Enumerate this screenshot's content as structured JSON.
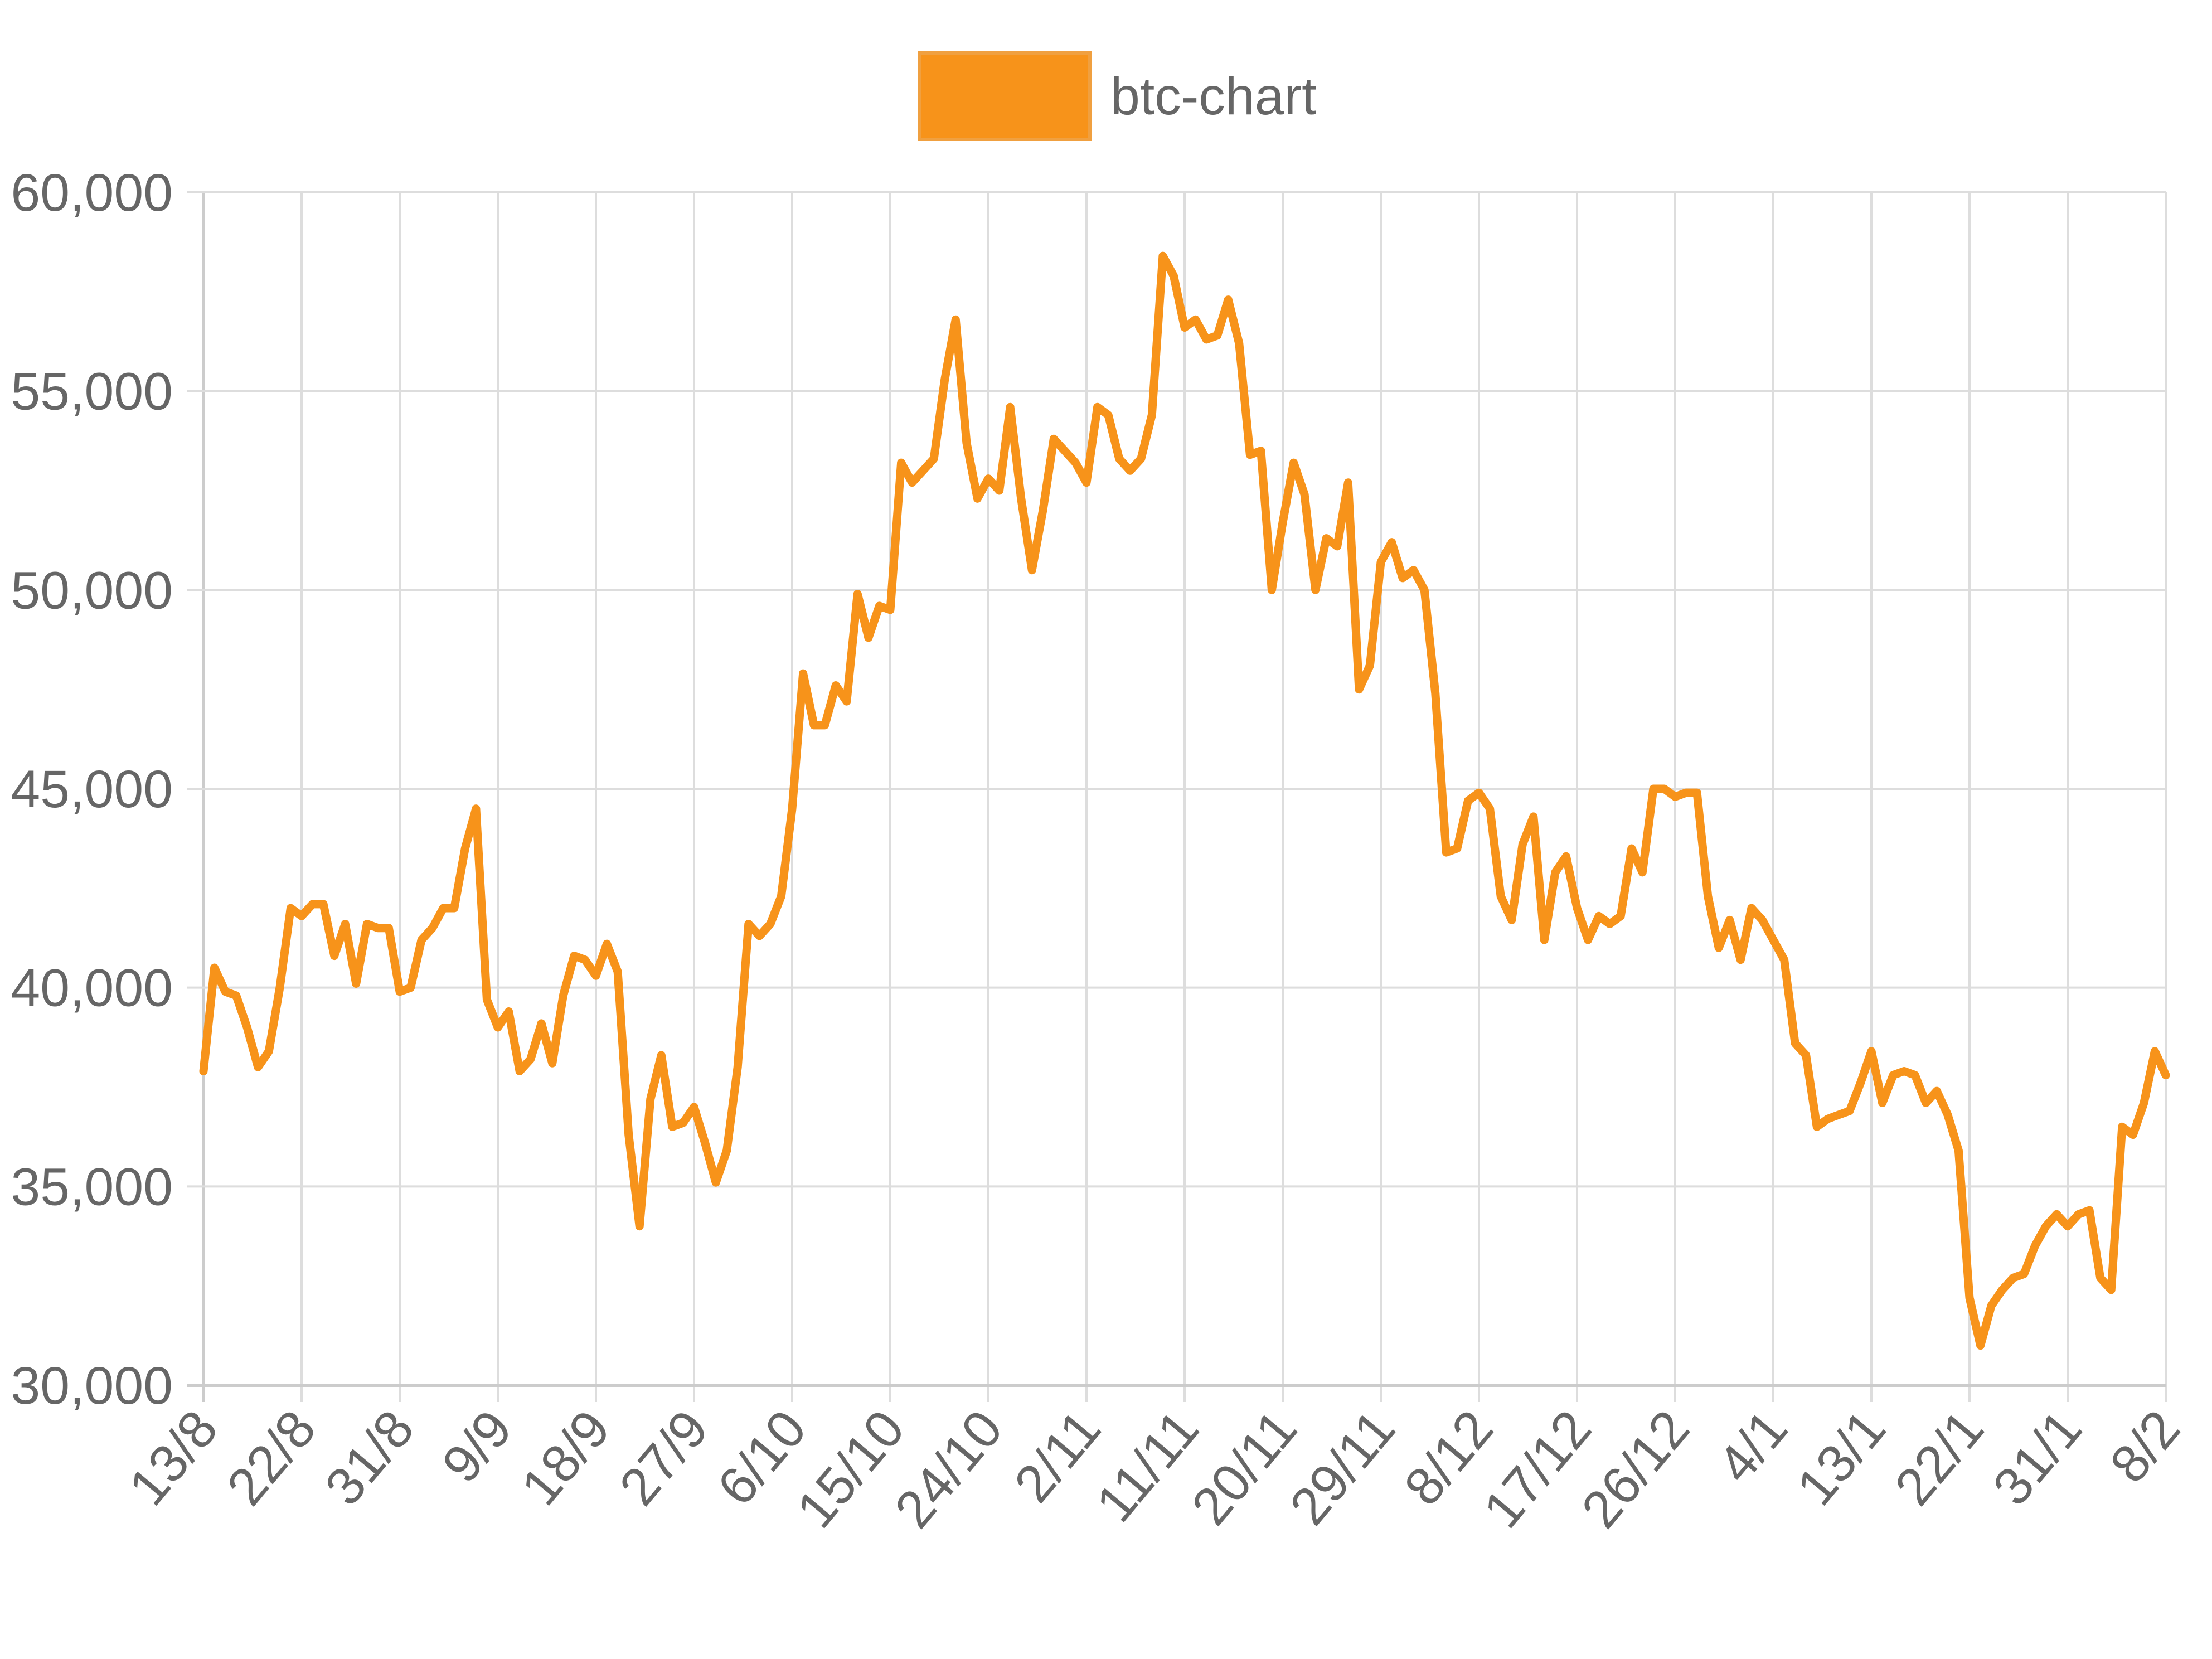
{
  "chart_data": {
    "type": "line",
    "legend": {
      "label": "btc-chart",
      "position": "top-center"
    },
    "series": [
      {
        "name": "btc-chart",
        "color": "#f7931a",
        "values": [
          37900,
          40500,
          39900,
          39800,
          39000,
          38000,
          38400,
          40000,
          42000,
          41800,
          42100,
          42100,
          40800,
          41600,
          40100,
          41600,
          41500,
          41500,
          39900,
          40000,
          41200,
          41500,
          42000,
          42000,
          43500,
          44500,
          39700,
          39000,
          39400,
          37900,
          38200,
          39100,
          38100,
          39800,
          40800,
          40700,
          40300,
          41100,
          40400,
          36300,
          34000,
          37200,
          38300,
          36500,
          36600,
          37000,
          36100,
          35100,
          35900,
          38000,
          41600,
          41300,
          41600,
          42300,
          44500,
          47900,
          46600,
          46600,
          47600,
          47200,
          49900,
          48800,
          49600,
          49500,
          53200,
          52700,
          53000,
          53300,
          55300,
          56800,
          53700,
          52300,
          52800,
          52500,
          54600,
          52300,
          50500,
          52000,
          53800,
          53500,
          53200,
          52700,
          54600,
          54400,
          53300,
          53000,
          53300,
          54400,
          58400,
          57900,
          56600,
          56800,
          56300,
          56400,
          57300,
          56200,
          53400,
          53500,
          50000,
          51700,
          53200,
          52400,
          50000,
          51300,
          51100,
          52700,
          47500,
          48100,
          50700,
          51200,
          50300,
          50500,
          50000,
          47400,
          43400,
          43500,
          44700,
          44900,
          44500,
          42300,
          41700,
          43600,
          44300,
          41200,
          42900,
          43300,
          42000,
          41200,
          41800,
          41600,
          41800,
          43500,
          42900,
          45000,
          45000,
          44800,
          44900,
          44900,
          42300,
          41000,
          41700,
          40700,
          42000,
          41700,
          41200,
          40700,
          38600,
          38300,
          36500,
          36700,
          36800,
          36900,
          37600,
          38400,
          37100,
          37800,
          37900,
          37800,
          37100,
          37400,
          36800,
          35900,
          32200,
          31000,
          32000,
          32400,
          32700,
          32800,
          33500,
          34000,
          34300,
          34000,
          34300,
          34400,
          32700,
          32400,
          36500,
          36300,
          37100,
          38400,
          37800
        ]
      }
    ],
    "x_labels": [
      "13/8",
      "22/8",
      "31/8",
      "9/9",
      "18/9",
      "27/9",
      "6/10",
      "15/10",
      "24/10",
      "2/11",
      "11/11",
      "20/11",
      "29/11",
      "8/12",
      "17/12",
      "26/12",
      "4/1",
      "13/1",
      "22/1",
      "31/1",
      "8/2"
    ],
    "y_ticks": [
      "60,000",
      "55,000",
      "50,000",
      "45,000",
      "40,000",
      "35,000",
      "30,000"
    ],
    "ylim": [
      30000,
      60000
    ],
    "grid": true,
    "title": "",
    "xlabel": "",
    "ylabel": ""
  }
}
